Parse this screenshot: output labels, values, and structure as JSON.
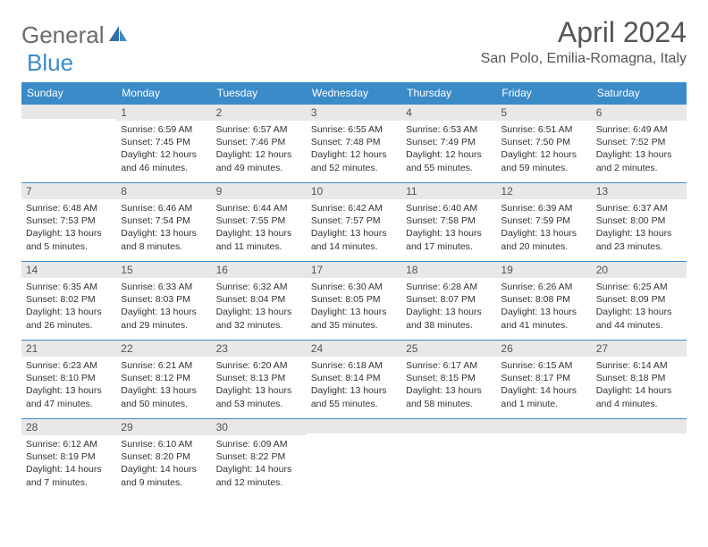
{
  "brand": {
    "part1": "General",
    "part2": "Blue"
  },
  "title": "April 2024",
  "location": "San Polo, Emilia-Romagna, Italy",
  "colors": {
    "header_bg": "#3b8bc9",
    "header_text": "#ffffff",
    "daynum_bg": "#e8e8e8",
    "border": "#3b8bc9",
    "body_text": "#333333",
    "logo_gray": "#6b6b6b",
    "logo_blue": "#3b8bc9"
  },
  "day_names": [
    "Sunday",
    "Monday",
    "Tuesday",
    "Wednesday",
    "Thursday",
    "Friday",
    "Saturday"
  ],
  "weeks": [
    [
      {
        "day": "",
        "lines": []
      },
      {
        "day": "1",
        "lines": [
          "Sunrise: 6:59 AM",
          "Sunset: 7:45 PM",
          "Daylight: 12 hours",
          "and 46 minutes."
        ]
      },
      {
        "day": "2",
        "lines": [
          "Sunrise: 6:57 AM",
          "Sunset: 7:46 PM",
          "Daylight: 12 hours",
          "and 49 minutes."
        ]
      },
      {
        "day": "3",
        "lines": [
          "Sunrise: 6:55 AM",
          "Sunset: 7:48 PM",
          "Daylight: 12 hours",
          "and 52 minutes."
        ]
      },
      {
        "day": "4",
        "lines": [
          "Sunrise: 6:53 AM",
          "Sunset: 7:49 PM",
          "Daylight: 12 hours",
          "and 55 minutes."
        ]
      },
      {
        "day": "5",
        "lines": [
          "Sunrise: 6:51 AM",
          "Sunset: 7:50 PM",
          "Daylight: 12 hours",
          "and 59 minutes."
        ]
      },
      {
        "day": "6",
        "lines": [
          "Sunrise: 6:49 AM",
          "Sunset: 7:52 PM",
          "Daylight: 13 hours",
          "and 2 minutes."
        ]
      }
    ],
    [
      {
        "day": "7",
        "lines": [
          "Sunrise: 6:48 AM",
          "Sunset: 7:53 PM",
          "Daylight: 13 hours",
          "and 5 minutes."
        ]
      },
      {
        "day": "8",
        "lines": [
          "Sunrise: 6:46 AM",
          "Sunset: 7:54 PM",
          "Daylight: 13 hours",
          "and 8 minutes."
        ]
      },
      {
        "day": "9",
        "lines": [
          "Sunrise: 6:44 AM",
          "Sunset: 7:55 PM",
          "Daylight: 13 hours",
          "and 11 minutes."
        ]
      },
      {
        "day": "10",
        "lines": [
          "Sunrise: 6:42 AM",
          "Sunset: 7:57 PM",
          "Daylight: 13 hours",
          "and 14 minutes."
        ]
      },
      {
        "day": "11",
        "lines": [
          "Sunrise: 6:40 AM",
          "Sunset: 7:58 PM",
          "Daylight: 13 hours",
          "and 17 minutes."
        ]
      },
      {
        "day": "12",
        "lines": [
          "Sunrise: 6:39 AM",
          "Sunset: 7:59 PM",
          "Daylight: 13 hours",
          "and 20 minutes."
        ]
      },
      {
        "day": "13",
        "lines": [
          "Sunrise: 6:37 AM",
          "Sunset: 8:00 PM",
          "Daylight: 13 hours",
          "and 23 minutes."
        ]
      }
    ],
    [
      {
        "day": "14",
        "lines": [
          "Sunrise: 6:35 AM",
          "Sunset: 8:02 PM",
          "Daylight: 13 hours",
          "and 26 minutes."
        ]
      },
      {
        "day": "15",
        "lines": [
          "Sunrise: 6:33 AM",
          "Sunset: 8:03 PM",
          "Daylight: 13 hours",
          "and 29 minutes."
        ]
      },
      {
        "day": "16",
        "lines": [
          "Sunrise: 6:32 AM",
          "Sunset: 8:04 PM",
          "Daylight: 13 hours",
          "and 32 minutes."
        ]
      },
      {
        "day": "17",
        "lines": [
          "Sunrise: 6:30 AM",
          "Sunset: 8:05 PM",
          "Daylight: 13 hours",
          "and 35 minutes."
        ]
      },
      {
        "day": "18",
        "lines": [
          "Sunrise: 6:28 AM",
          "Sunset: 8:07 PM",
          "Daylight: 13 hours",
          "and 38 minutes."
        ]
      },
      {
        "day": "19",
        "lines": [
          "Sunrise: 6:26 AM",
          "Sunset: 8:08 PM",
          "Daylight: 13 hours",
          "and 41 minutes."
        ]
      },
      {
        "day": "20",
        "lines": [
          "Sunrise: 6:25 AM",
          "Sunset: 8:09 PM",
          "Daylight: 13 hours",
          "and 44 minutes."
        ]
      }
    ],
    [
      {
        "day": "21",
        "lines": [
          "Sunrise: 6:23 AM",
          "Sunset: 8:10 PM",
          "Daylight: 13 hours",
          "and 47 minutes."
        ]
      },
      {
        "day": "22",
        "lines": [
          "Sunrise: 6:21 AM",
          "Sunset: 8:12 PM",
          "Daylight: 13 hours",
          "and 50 minutes."
        ]
      },
      {
        "day": "23",
        "lines": [
          "Sunrise: 6:20 AM",
          "Sunset: 8:13 PM",
          "Daylight: 13 hours",
          "and 53 minutes."
        ]
      },
      {
        "day": "24",
        "lines": [
          "Sunrise: 6:18 AM",
          "Sunset: 8:14 PM",
          "Daylight: 13 hours",
          "and 55 minutes."
        ]
      },
      {
        "day": "25",
        "lines": [
          "Sunrise: 6:17 AM",
          "Sunset: 8:15 PM",
          "Daylight: 13 hours",
          "and 58 minutes."
        ]
      },
      {
        "day": "26",
        "lines": [
          "Sunrise: 6:15 AM",
          "Sunset: 8:17 PM",
          "Daylight: 14 hours",
          "and 1 minute."
        ]
      },
      {
        "day": "27",
        "lines": [
          "Sunrise: 6:14 AM",
          "Sunset: 8:18 PM",
          "Daylight: 14 hours",
          "and 4 minutes."
        ]
      }
    ],
    [
      {
        "day": "28",
        "lines": [
          "Sunrise: 6:12 AM",
          "Sunset: 8:19 PM",
          "Daylight: 14 hours",
          "and 7 minutes."
        ]
      },
      {
        "day": "29",
        "lines": [
          "Sunrise: 6:10 AM",
          "Sunset: 8:20 PM",
          "Daylight: 14 hours",
          "and 9 minutes."
        ]
      },
      {
        "day": "30",
        "lines": [
          "Sunrise: 6:09 AM",
          "Sunset: 8:22 PM",
          "Daylight: 14 hours",
          "and 12 minutes."
        ]
      },
      {
        "day": "",
        "lines": []
      },
      {
        "day": "",
        "lines": []
      },
      {
        "day": "",
        "lines": []
      },
      {
        "day": "",
        "lines": []
      }
    ]
  ]
}
